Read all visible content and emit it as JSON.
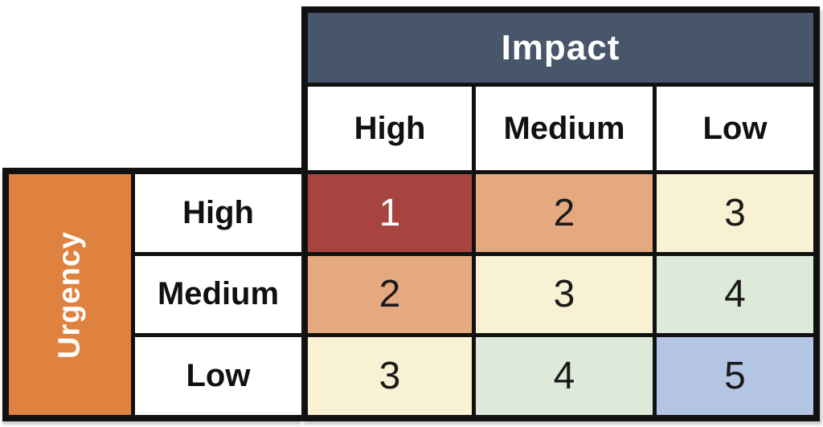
{
  "impact": {
    "header": "Impact",
    "levels": [
      "High",
      "Medium",
      "Low"
    ]
  },
  "urgency": {
    "header": "Urgency",
    "levels": [
      "High",
      "Medium",
      "Low"
    ]
  },
  "cells": [
    {
      "urgency": "High",
      "impact": "High",
      "value": "1",
      "bg": "#a8443f",
      "fg": "#ffffff"
    },
    {
      "urgency": "High",
      "impact": "Medium",
      "value": "2",
      "bg": "#e5a97f",
      "fg": "#1a1a1a"
    },
    {
      "urgency": "High",
      "impact": "Low",
      "value": "3",
      "bg": "#f8f1d3",
      "fg": "#1a1a1a"
    },
    {
      "urgency": "Medium",
      "impact": "High",
      "value": "2",
      "bg": "#e5a97f",
      "fg": "#1a1a1a"
    },
    {
      "urgency": "Medium",
      "impact": "Medium",
      "value": "3",
      "bg": "#f8f1d3",
      "fg": "#1a1a1a"
    },
    {
      "urgency": "Medium",
      "impact": "Low",
      "value": "4",
      "bg": "#deead9",
      "fg": "#1a1a1a"
    },
    {
      "urgency": "Low",
      "impact": "High",
      "value": "3",
      "bg": "#f8f1d3",
      "fg": "#1a1a1a"
    },
    {
      "urgency": "Low",
      "impact": "Medium",
      "value": "4",
      "bg": "#deead9",
      "fg": "#1a1a1a"
    },
    {
      "urgency": "Low",
      "impact": "Low",
      "value": "5",
      "bg": "#b4c4e3",
      "fg": "#1a1a1a"
    }
  ],
  "colors": {
    "impact_header_bg": "#47566a",
    "impact_header_fg": "#ffffff",
    "urgency_header_bg": "#e0823f",
    "urgency_header_fg": "#ffffff",
    "header_cell_bg": "#ffffff",
    "border": "#111111",
    "priority_1": "#a8443f",
    "priority_2": "#e5a97f",
    "priority_3": "#f8f1d3",
    "priority_4": "#deead9",
    "priority_5": "#b4c4e3"
  },
  "chart_data": {
    "type": "heatmap",
    "xlabel": "Impact",
    "ylabel": "Urgency",
    "x_categories": [
      "High",
      "Medium",
      "Low"
    ],
    "y_categories": [
      "High",
      "Medium",
      "Low"
    ],
    "values": [
      [
        1,
        2,
        3
      ],
      [
        2,
        3,
        4
      ],
      [
        3,
        4,
        5
      ]
    ],
    "value_colors": {
      "1": "#a8443f",
      "2": "#e5a97f",
      "3": "#f8f1d3",
      "4": "#deead9",
      "5": "#b4c4e3"
    },
    "legend_position": "none",
    "grid": true
  }
}
